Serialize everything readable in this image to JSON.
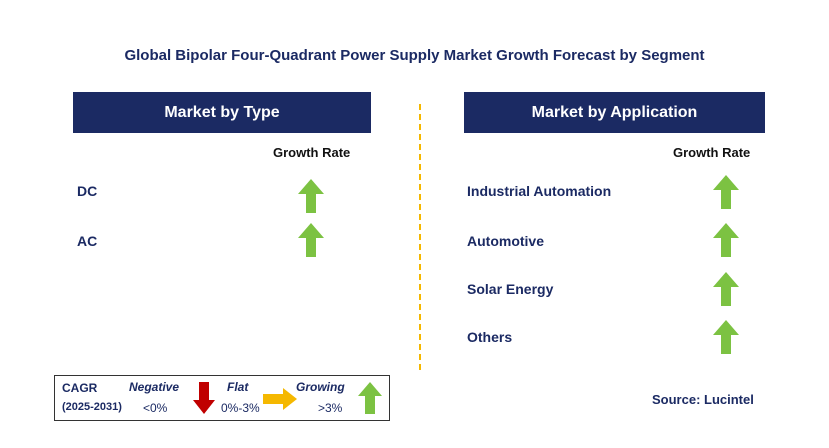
{
  "title": "Global Bipolar Four-Quadrant Power Supply Market Growth Forecast by Segment",
  "type_panel": {
    "header": "Market by Type",
    "growth_label": "Growth Rate",
    "rows": [
      {
        "label": "DC",
        "trend": "growing"
      },
      {
        "label": "AC",
        "trend": "growing"
      }
    ]
  },
  "application_panel": {
    "header": "Market by Application",
    "growth_label": "Growth Rate",
    "rows": [
      {
        "label": "Industrial Automation",
        "trend": "growing"
      },
      {
        "label": "Automotive",
        "trend": "growing"
      },
      {
        "label": "Solar Energy",
        "trend": "growing"
      },
      {
        "label": "Others",
        "trend": "growing"
      }
    ]
  },
  "legend": {
    "cagr": "CAGR",
    "period": "(2025-2031)",
    "negative_label": "Negative",
    "negative_range": "<0%",
    "flat_label": "Flat",
    "flat_range": "0%-3%",
    "growing_label": "Growing",
    "growing_range": ">3%"
  },
  "source": "Source: Lucintel",
  "colors": {
    "header_bg": "#1b2a63",
    "growing": "#7cc242",
    "negative": "#c00000",
    "flat": "#f5b800",
    "divider": "#f5b800"
  },
  "icons": {
    "growing": "up-arrow-icon",
    "negative": "down-arrow-icon",
    "flat": "right-arrow-icon"
  }
}
